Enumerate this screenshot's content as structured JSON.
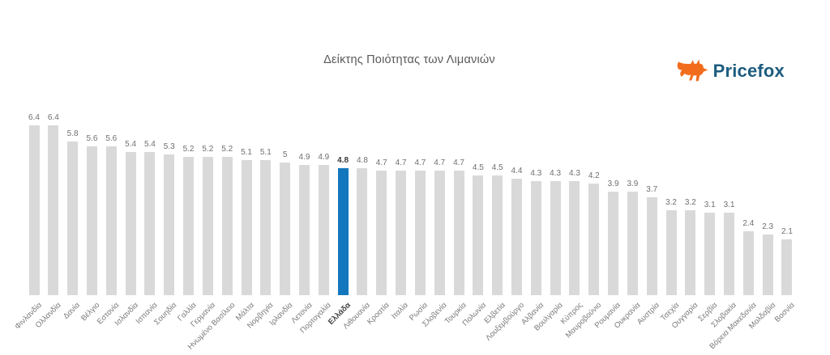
{
  "title": "Δείκτης Ποιότητας των Λιμανιών",
  "brand": {
    "name": "Pricefox"
  },
  "colors": {
    "bar": "#d9d9d9",
    "highlight_bar": "#1377bd",
    "value_label": "#6f6f6f",
    "highlight_text": "#3a3a3a",
    "axis_label": "#7a7a7a",
    "title_text": "#595959",
    "brand_text": "#1d5c80",
    "brand_fox": "#f26c1e",
    "background": "#ffffff"
  },
  "chart_data": {
    "type": "bar",
    "title": "Δείκτης Ποιότητας των Λιμανιών",
    "xlabel": "",
    "ylabel": "",
    "ylim": [
      0,
      6.4
    ],
    "grid": false,
    "legend": false,
    "value_labels_shown": true,
    "highlight": {
      "index": 16,
      "category": "Ελλάδα",
      "value": 4.8
    },
    "categories": [
      "Φινλανδία",
      "Ολλανδία",
      "Δανία",
      "Βέλγιο",
      "Εστονία",
      "Ισλανδία",
      "Ισπανία",
      "Σουηδία",
      "Γαλλία",
      "Γερμανία",
      "Ηνωμένο Βασίλειο",
      "Μάλτα",
      "Νορβηγία",
      "Ιρλανδία",
      "Λετονία",
      "Πορτογαλία",
      "Ελλάδα",
      "Λιθουανία",
      "Κροατία",
      "Ιταλία",
      "Ρωσία",
      "Σλοβενία",
      "Τουρκία",
      "Πολωνία",
      "Ελβετία",
      "Λουξεμβούργο",
      "Αλβανία",
      "Βουλγαρία",
      "Κύπρος",
      "Μαυροβούνιο",
      "Ρουμανία",
      "Ουκρανία",
      "Αυστρία",
      "Τσεχία",
      "Ουγγαρία",
      "Σερβία",
      "Σλοβακία",
      "Βόρεια Μακεδονία",
      "Μολδαβία",
      "Βοσνία"
    ],
    "values": [
      6.4,
      6.4,
      5.8,
      5.6,
      5.6,
      5.4,
      5.4,
      5.3,
      5.2,
      5.2,
      5.2,
      5.1,
      5.1,
      5,
      4.9,
      4.9,
      4.8,
      4.8,
      4.7,
      4.7,
      4.7,
      4.7,
      4.7,
      4.5,
      4.5,
      4.4,
      4.3,
      4.3,
      4.3,
      4.2,
      3.9,
      3.9,
      3.7,
      3.2,
      3.2,
      3.1,
      3.1,
      2.4,
      2.3,
      2.1
    ]
  }
}
